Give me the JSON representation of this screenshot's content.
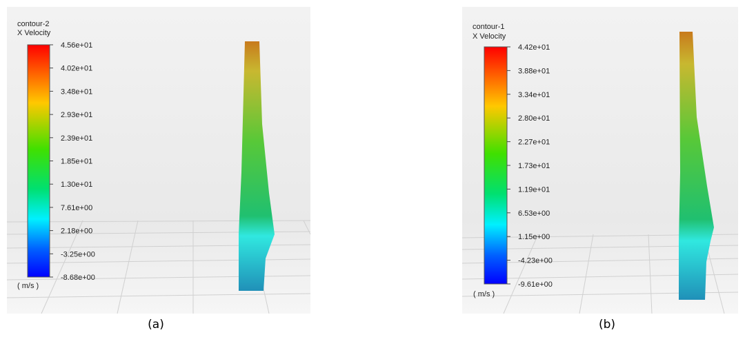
{
  "panels": [
    {
      "title": "contour-2",
      "quantity": "X Velocity",
      "unit": "( m/s )",
      "ticks": [
        "4.56e+01",
        "4.02e+01",
        "3.48e+01",
        "2.93e+01",
        "2.39e+01",
        "1.85e+01",
        "1.30e+01",
        "7.61e+00",
        "2.18e+00",
        "-3.25e+00",
        "-8.68e+00"
      ],
      "caption": "(a)"
    },
    {
      "title": "contour-1",
      "quantity": "X Velocity",
      "unit": "( m/s )",
      "ticks": [
        "4.42e+01",
        "3.88e+01",
        "3.34e+01",
        "2.80e+01",
        "2.27e+01",
        "1.73e+01",
        "1.19e+01",
        "6.53e+00",
        "1.15e+00",
        "-4.23e+00",
        "-9.61e+00"
      ],
      "caption": "(b)"
    }
  ]
}
